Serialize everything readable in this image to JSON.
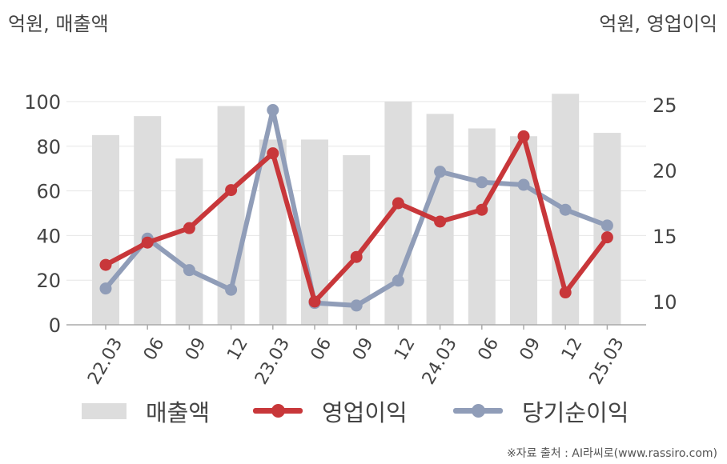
{
  "units": {
    "left": "억원, 매출액",
    "right": "억원, 영업이익"
  },
  "source": "※자료 출처 : AI라씨로(www.rassiro.com)",
  "colors": {
    "bar": "#dddddd",
    "operating": "#c8373a",
    "net": "#909db8",
    "grid": "#e6e6e6",
    "axis": "#aaaaaa",
    "text": "#444444"
  },
  "chart_data": {
    "type": "bar",
    "categories": [
      "22.03",
      "06",
      "09",
      "12",
      "23.03",
      "06",
      "09",
      "12",
      "24.03",
      "06",
      "09",
      "12",
      "25.03"
    ],
    "left_axis": {
      "ylim": [
        0,
        100
      ],
      "ticks": [
        0,
        20,
        40,
        60,
        80,
        100
      ]
    },
    "right_axis": {
      "ylim": [
        8,
        25
      ],
      "ticks": [
        10,
        15,
        20,
        25
      ]
    },
    "grid": true,
    "legend_position": "bottom",
    "series": [
      {
        "name": "매출액",
        "type": "bar",
        "axis": "left",
        "values": [
          85,
          93.5,
          74.5,
          98,
          83,
          83,
          76,
          100,
          94.5,
          88,
          84.5,
          103.5,
          86
        ]
      },
      {
        "name": "영업이익",
        "type": "line",
        "axis": "right",
        "values": [
          12.8,
          14.5,
          15.6,
          18.5,
          21.3,
          10,
          13.4,
          17.5,
          16.1,
          17,
          22.6,
          10.7,
          14.9
        ]
      },
      {
        "name": "당기순이익",
        "type": "line",
        "axis": "right",
        "values": [
          11,
          14.8,
          12.4,
          10.9,
          24.6,
          9.9,
          9.7,
          11.6,
          19.9,
          19.1,
          18.9,
          17,
          15.8
        ]
      }
    ]
  }
}
